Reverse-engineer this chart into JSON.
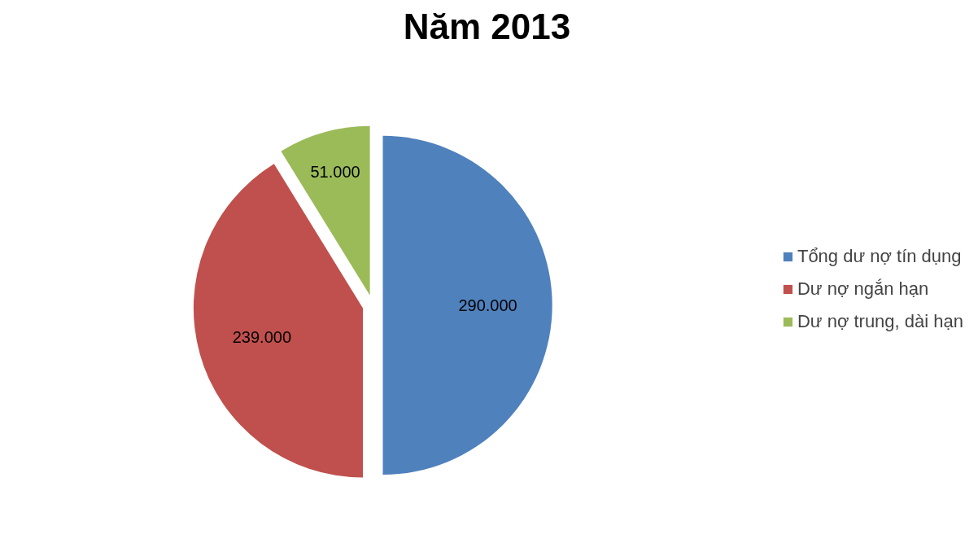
{
  "chart_data": {
    "type": "pie",
    "title": "Năm 2013",
    "categories": [
      "Tổng dư nợ tín dụng",
      "Dư nợ ngắn hạn",
      "Dư nợ trung, dài hạn"
    ],
    "values": [
      290000,
      239000,
      51000
    ],
    "colors": [
      "#4f81bd",
      "#c0504d",
      "#9bbb59"
    ],
    "value_labels": [
      "290.000",
      "239.000",
      "51.000"
    ],
    "legend": "right"
  }
}
